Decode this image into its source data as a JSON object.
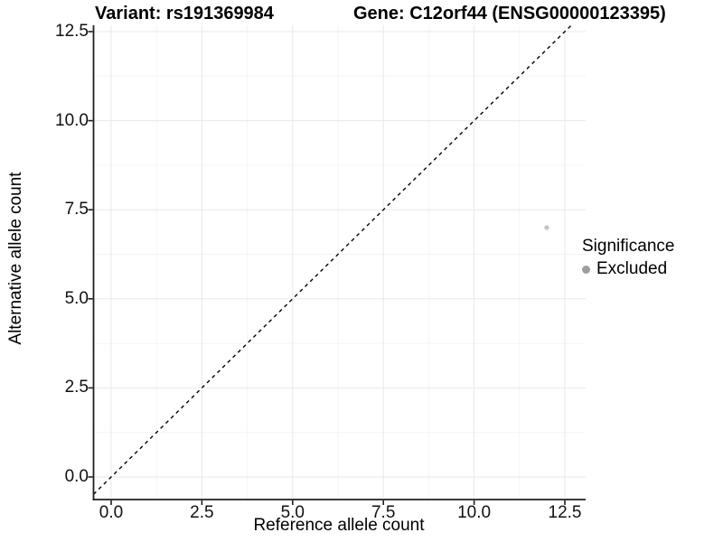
{
  "header": {
    "title_left": "Variant: rs191369984",
    "title_right": "Gene: C12orf44 (ENSG00000123395)"
  },
  "axes": {
    "xlabel": "Reference allele count",
    "ylabel": "Alternative allele count"
  },
  "legend": {
    "title": "Significance",
    "items": [
      {
        "label": "Excluded",
        "color": "#9e9e9e"
      }
    ]
  },
  "colors": {
    "point": "#c2c2c2",
    "axis": "#1f1f1f",
    "grid_major": "#e8e8e8",
    "grid_minor": "#f4f4f4",
    "diagonal": "#000000",
    "tick_text": "#111111"
  },
  "chart_data": {
    "type": "scatter",
    "title": "Variant: rs191369984 | Gene: C12orf44 (ENSG00000123395)",
    "xlabel": "Reference allele count",
    "ylabel": "Alternative allele count",
    "xlim": [
      -0.49,
      13.07
    ],
    "ylim": [
      -0.63,
      12.68
    ],
    "x_tick_values": [
      0,
      2.5,
      5,
      7.5,
      10,
      12.5
    ],
    "x_tick_labels": [
      "0.0",
      "2.5",
      "5.0",
      "7.5",
      "10.0",
      "12.5"
    ],
    "y_tick_values": [
      0,
      2.5,
      5,
      7.5,
      10,
      12.5
    ],
    "y_tick_labels": [
      "0.0",
      "2.5",
      "5.0",
      "7.5",
      "10.0",
      "12.5"
    ],
    "grid": "major+minor",
    "series": [
      {
        "name": "Excluded",
        "color": "#c2c2c2",
        "points": [
          {
            "x": 12,
            "y": 7
          }
        ]
      }
    ],
    "reference_line": {
      "equation": "y = x",
      "style": "dashed",
      "color": "#000000"
    },
    "legend": {
      "title": "Significance",
      "position": "right",
      "entries": [
        "Excluded"
      ]
    }
  }
}
